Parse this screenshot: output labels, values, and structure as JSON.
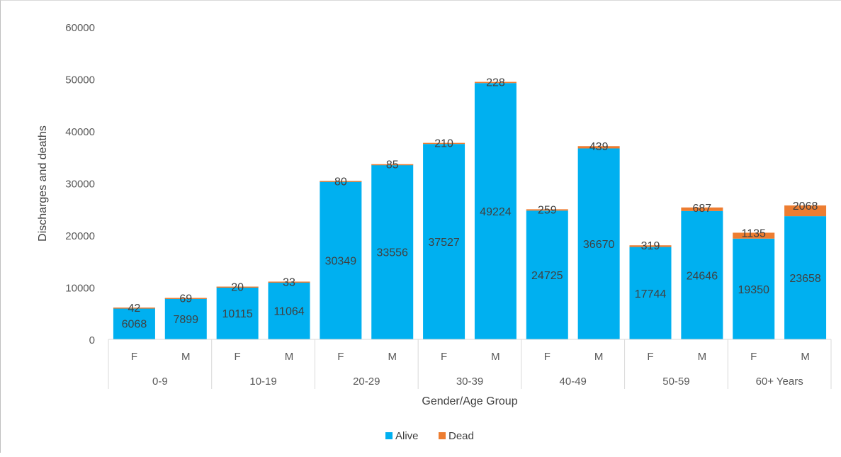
{
  "chart_data": {
    "type": "bar",
    "stacked": true,
    "title": "",
    "xlabel": "Gender/Age Group",
    "ylabel": "Discharges and deaths",
    "ylim": [
      0,
      60000
    ],
    "yticks": [
      "0",
      "10000",
      "20000",
      "30000",
      "40000",
      "50000",
      "60000"
    ],
    "grid": false,
    "legend_position": "bottom",
    "categories": [
      "F",
      "M",
      "F",
      "M",
      "F",
      "M",
      "F",
      "M",
      "F",
      "M",
      "F",
      "M",
      "F",
      "M"
    ],
    "groups": [
      "0-9",
      "10-19",
      "20-29",
      "30-39",
      "40-49",
      "50-59",
      "60+ Years"
    ],
    "series": [
      {
        "name": "Alive",
        "color": "#00b0f0",
        "values": [
          6068,
          7899,
          10115,
          11064,
          30349,
          33556,
          37527,
          49224,
          24725,
          36670,
          17744,
          24646,
          19350,
          23658
        ]
      },
      {
        "name": "Dead",
        "color": "#ed7d31",
        "values": [
          42,
          69,
          20,
          33,
          80,
          85,
          210,
          228,
          259,
          439,
          319,
          687,
          1135,
          2068
        ]
      }
    ]
  }
}
